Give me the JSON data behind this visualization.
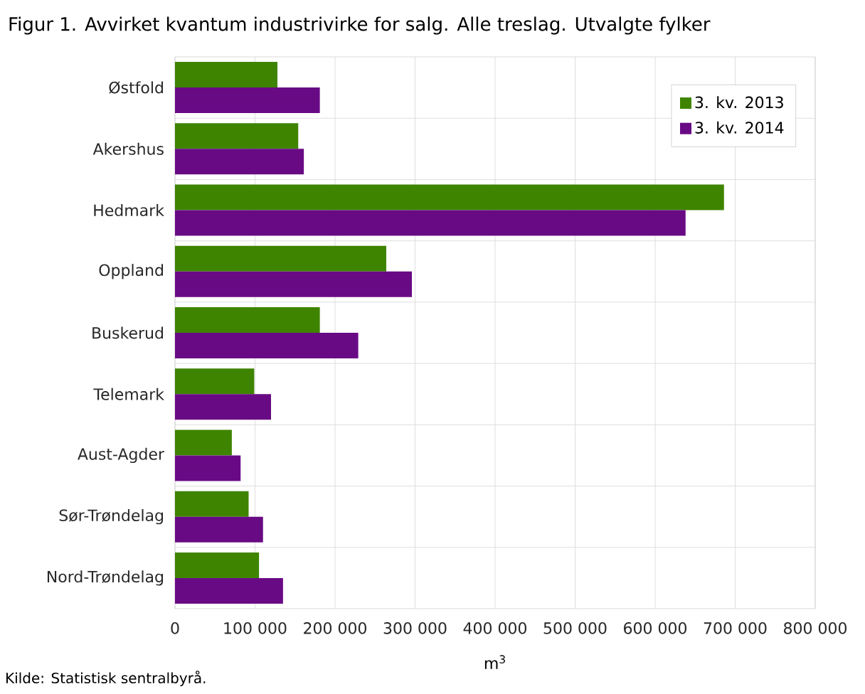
{
  "chart_data": {
    "type": "bar",
    "orientation": "horizontal",
    "title": "Figur 1. Avvirket kvantum industrivirke for salg. Alle treslag. Utvalgte fylker",
    "xlabel": "m$^{3}$",
    "annotations": [
      "Kilde: Statistisk sentralbyrå."
    ],
    "categories": [
      "Østfold",
      "Akershus",
      "Hedmark",
      "Oppland",
      "Buskerud",
      "Telemark",
      "Aust-Agder",
      "Sør-Trøndelag",
      "Nord-Trøndelag"
    ],
    "series": [
      {
        "name": "3. kv. 2013",
        "color": "#3e8400",
        "values": [
          128000,
          154000,
          686000,
          264000,
          181000,
          99000,
          71000,
          92000,
          105000
        ]
      },
      {
        "name": "3. kv. 2014",
        "color": "#690a85",
        "values": [
          181000,
          161000,
          638000,
          296000,
          229000,
          120000,
          82000,
          110000,
          135000
        ]
      }
    ],
    "xlim": [
      0,
      800000
    ],
    "xticks": [
      0,
      {
        "value": 100000,
        "label": "100 000"
      },
      {
        "value": 200000,
        "label": "200 000"
      },
      {
        "value": 300000,
        "label": "300 000"
      },
      {
        "value": 400000,
        "label": "400 000"
      },
      {
        "value": 500000,
        "label": "500 000"
      },
      {
        "value": 600000,
        "label": "600 000"
      },
      {
        "value": 700000,
        "label": "700 000"
      },
      {
        "value": 800000,
        "label": "800 000"
      }
    ],
    "grid": true,
    "legend": "top right"
  }
}
